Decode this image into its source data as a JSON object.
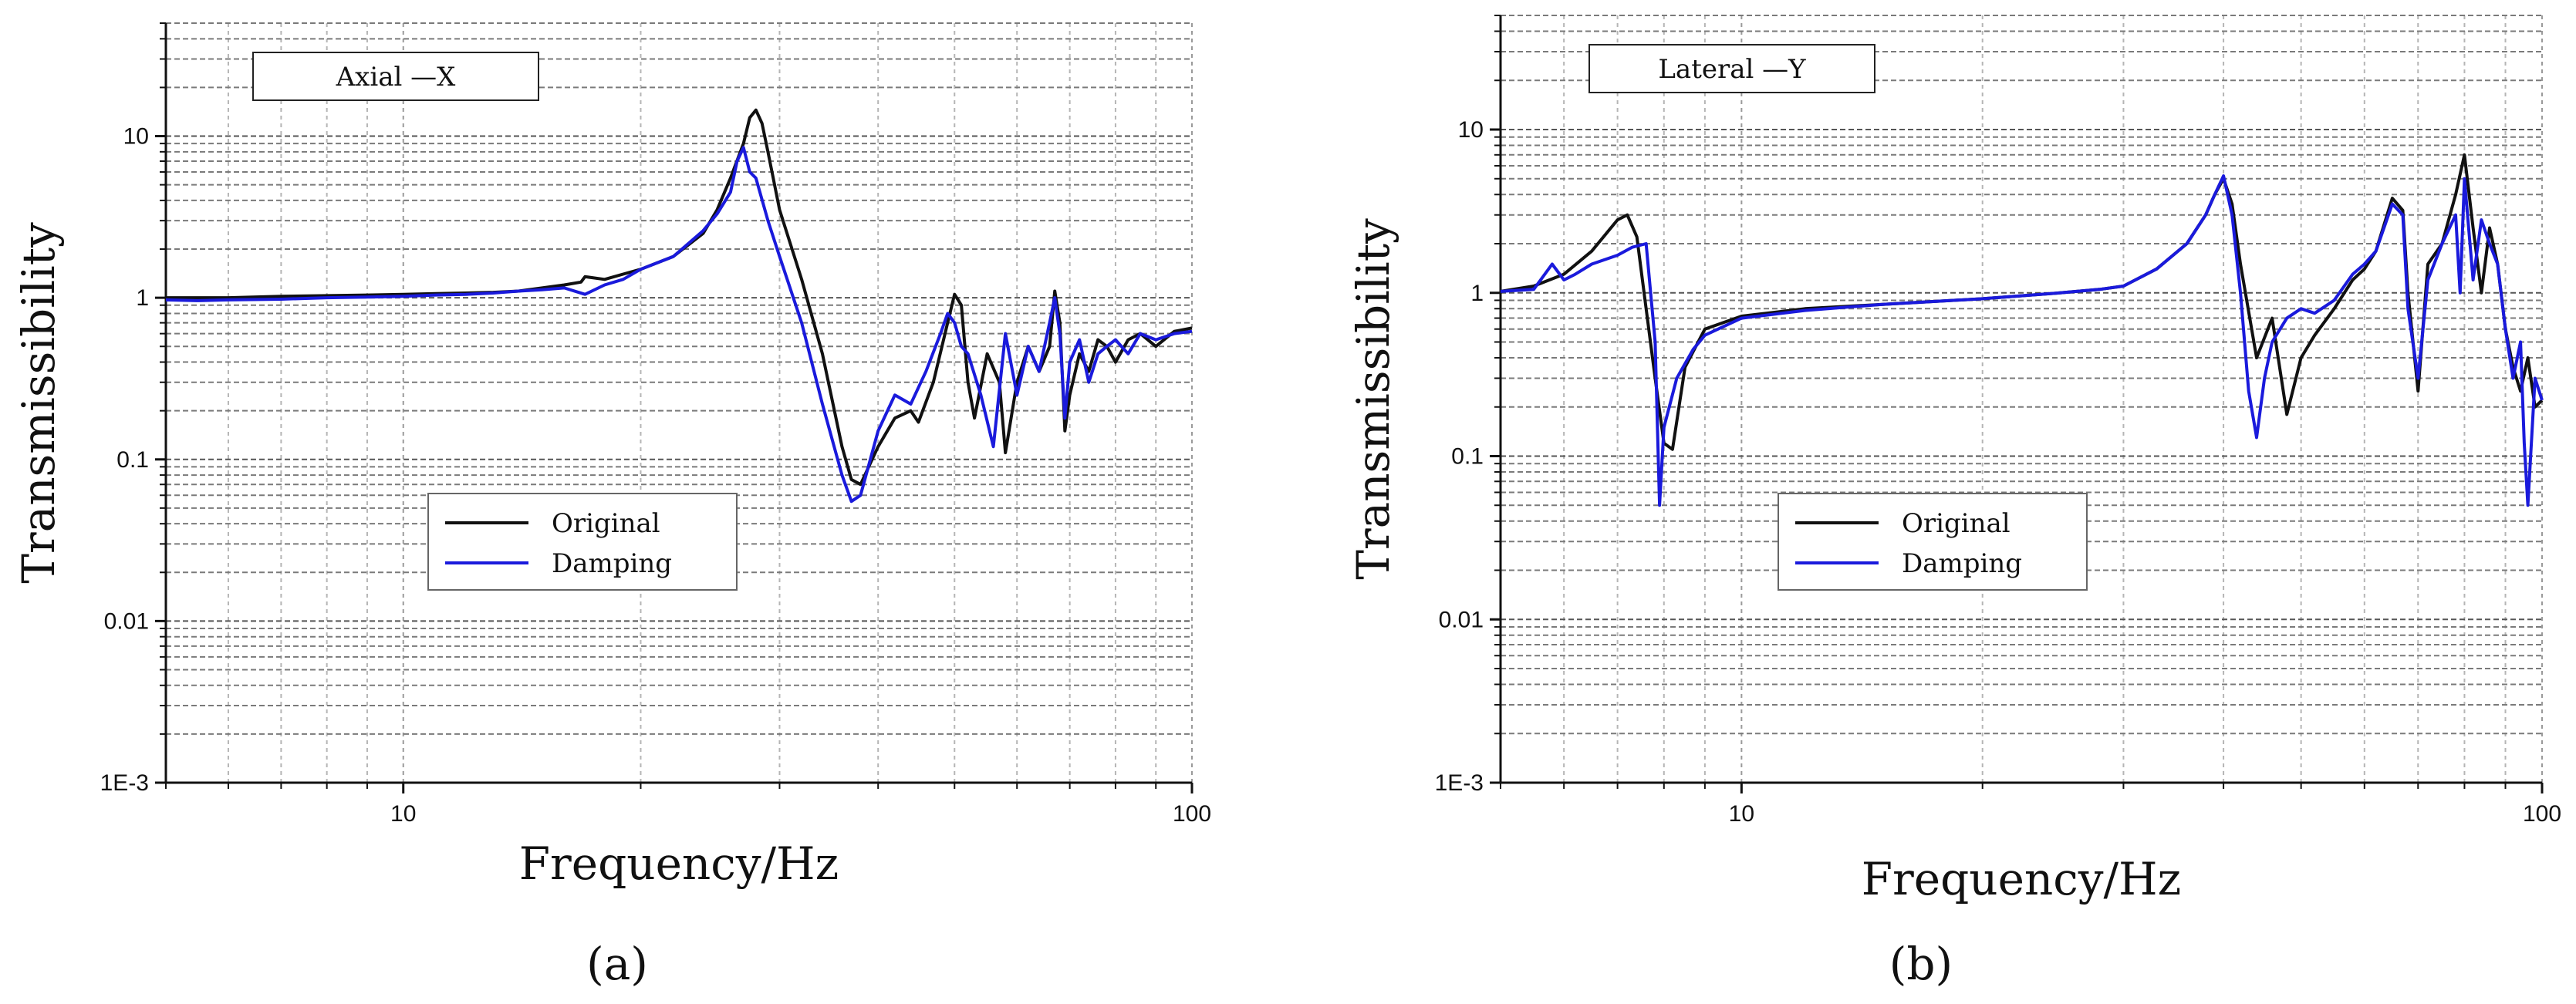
{
  "chart_data": [
    {
      "type": "line",
      "title": "Axial —X",
      "panel_label": "(a)",
      "xlabel": "Frequency/Hz",
      "ylabel": "Transmissibility",
      "x_scale": "log",
      "y_scale": "log",
      "xlim": [
        5,
        100
      ],
      "ylim": [
        0.001,
        50
      ],
      "x_ticks": [
        "10",
        "100"
      ],
      "y_ticks": [
        "1E-3",
        "0.01",
        "0.1",
        "1",
        "10"
      ],
      "grid": true,
      "legend_position": "center",
      "series": [
        {
          "name": "Original",
          "color": "#111111",
          "x": [
            5,
            5.5,
            6,
            7,
            8,
            9,
            10,
            11,
            12,
            13,
            14,
            15,
            16,
            16.8,
            17,
            18,
            19,
            20,
            22,
            24,
            25,
            26,
            27,
            27.5,
            28,
            28.5,
            29,
            30,
            32,
            34,
            36,
            37,
            38,
            40,
            42,
            44,
            45,
            47,
            49,
            50,
            51,
            52,
            53,
            55,
            57,
            58,
            60,
            62,
            64,
            66,
            67,
            68,
            69,
            70,
            72,
            74,
            76,
            78,
            80,
            83,
            86,
            90,
            95,
            100
          ],
          "y": [
            1.0,
            1.0,
            1.0,
            1.02,
            1.03,
            1.04,
            1.05,
            1.06,
            1.07,
            1.08,
            1.1,
            1.15,
            1.2,
            1.25,
            1.35,
            1.3,
            1.4,
            1.5,
            1.8,
            2.5,
            3.5,
            5.5,
            9.0,
            13.0,
            14.5,
            12.0,
            8.0,
            3.5,
            1.3,
            0.45,
            0.12,
            0.075,
            0.07,
            0.12,
            0.18,
            0.2,
            0.17,
            0.3,
            0.7,
            1.05,
            0.9,
            0.3,
            0.18,
            0.45,
            0.3,
            0.11,
            0.3,
            0.5,
            0.35,
            0.5,
            1.1,
            0.7,
            0.15,
            0.25,
            0.45,
            0.35,
            0.55,
            0.5,
            0.4,
            0.55,
            0.6,
            0.5,
            0.62,
            0.65
          ]
        },
        {
          "name": "Damping",
          "color": "#1a1adc",
          "x": [
            5,
            5.5,
            6,
            7,
            8,
            9,
            10,
            11,
            12,
            13,
            14,
            15,
            16,
            17,
            18,
            19,
            20,
            22,
            24,
            25,
            26,
            26.5,
            27,
            27.5,
            28,
            29,
            30,
            32,
            34,
            36,
            37,
            38,
            40,
            42,
            44,
            46,
            48,
            49,
            50,
            51,
            52,
            54,
            56,
            58,
            60,
            62,
            64,
            66,
            67,
            68,
            69,
            70,
            72,
            74,
            76,
            78,
            80,
            83,
            86,
            90,
            95,
            100
          ],
          "y": [
            0.97,
            0.96,
            0.97,
            0.98,
            1.0,
            1.01,
            1.02,
            1.04,
            1.05,
            1.07,
            1.1,
            1.12,
            1.15,
            1.05,
            1.2,
            1.3,
            1.5,
            1.8,
            2.6,
            3.3,
            4.5,
            7.0,
            8.5,
            6.0,
            5.5,
            3.0,
            1.8,
            0.7,
            0.22,
            0.08,
            0.055,
            0.06,
            0.15,
            0.25,
            0.22,
            0.35,
            0.6,
            0.8,
            0.7,
            0.5,
            0.45,
            0.25,
            0.12,
            0.6,
            0.25,
            0.5,
            0.35,
            0.7,
            1.0,
            0.6,
            0.18,
            0.4,
            0.55,
            0.3,
            0.45,
            0.5,
            0.55,
            0.45,
            0.6,
            0.55,
            0.6,
            0.62
          ]
        }
      ]
    },
    {
      "type": "line",
      "title": "Lateral —Y",
      "panel_label": "(b)",
      "xlabel": "Frequency/Hz",
      "ylabel": "Transmissibility",
      "x_scale": "log",
      "y_scale": "log",
      "xlim": [
        5,
        100
      ],
      "ylim": [
        0.001,
        50
      ],
      "x_ticks": [
        "10",
        "100"
      ],
      "y_ticks": [
        "1E-3",
        "0.01",
        "0.1",
        "1",
        "10"
      ],
      "grid": true,
      "legend_position": "center",
      "series": [
        {
          "name": "Original",
          "color": "#111111",
          "x": [
            5,
            5.5,
            6,
            6.5,
            7,
            7.2,
            7.4,
            7.6,
            7.8,
            8.0,
            8.2,
            8.5,
            9,
            10,
            12,
            15,
            20,
            25,
            28,
            30,
            33,
            36,
            38,
            39,
            40,
            41,
            42,
            44,
            46,
            48,
            50,
            52,
            55,
            58,
            60,
            62,
            65,
            67,
            68,
            70,
            72,
            75,
            78,
            80,
            82,
            84,
            86,
            88,
            90,
            92,
            94,
            96,
            98,
            100
          ],
          "y": [
            1.02,
            1.1,
            1.3,
            1.8,
            2.8,
            3.0,
            2.2,
            0.8,
            0.3,
            0.12,
            0.11,
            0.35,
            0.6,
            0.72,
            0.8,
            0.85,
            0.92,
            1.0,
            1.05,
            1.1,
            1.4,
            2.0,
            3.0,
            4.0,
            5.0,
            3.5,
            1.5,
            0.4,
            0.7,
            0.18,
            0.4,
            0.55,
            0.8,
            1.2,
            1.4,
            1.8,
            3.8,
            3.2,
            1.0,
            0.25,
            1.5,
            2.0,
            4.0,
            7.0,
            2.5,
            1.0,
            2.5,
            1.5,
            0.6,
            0.35,
            0.25,
            0.4,
            0.2,
            0.22
          ]
        },
        {
          "name": "Damping",
          "color": "#1a1adc",
          "x": [
            5,
            5.5,
            5.8,
            6.0,
            6.2,
            6.5,
            7,
            7.3,
            7.6,
            7.8,
            7.9,
            8.0,
            8.3,
            8.7,
            9,
            10,
            12,
            15,
            20,
            25,
            28,
            30,
            33,
            36,
            38,
            39,
            40,
            41,
            42,
            43,
            44,
            45,
            46,
            48,
            50,
            52,
            55,
            58,
            60,
            62,
            65,
            67,
            68,
            70,
            72,
            75,
            78,
            79,
            80,
            82,
            84,
            86,
            88,
            90,
            92,
            94,
            95,
            96,
            98,
            100
          ],
          "y": [
            1.02,
            1.05,
            1.5,
            1.2,
            1.3,
            1.5,
            1.7,
            1.9,
            2.0,
            0.5,
            0.05,
            0.15,
            0.3,
            0.45,
            0.55,
            0.7,
            0.78,
            0.85,
            0.92,
            1.0,
            1.05,
            1.1,
            1.4,
            2.0,
            3.0,
            4.0,
            5.2,
            3.0,
            1.0,
            0.25,
            0.13,
            0.3,
            0.5,
            0.7,
            0.8,
            0.75,
            0.9,
            1.3,
            1.5,
            1.8,
            3.5,
            3.0,
            0.8,
            0.3,
            1.2,
            2.0,
            3.0,
            1.0,
            5.0,
            1.2,
            2.8,
            2.0,
            1.5,
            0.6,
            0.3,
            0.5,
            0.12,
            0.05,
            0.3,
            0.22
          ]
        }
      ]
    }
  ]
}
